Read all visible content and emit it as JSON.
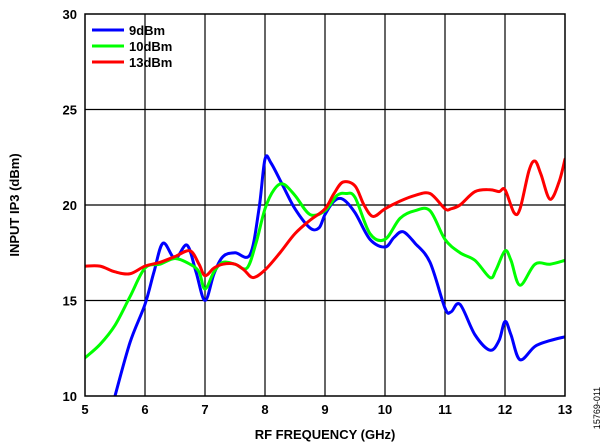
{
  "chart_data": {
    "type": "line",
    "title": "",
    "xlabel": "RF FREQUENCY (GHz)",
    "ylabel": "INPUT IP3 (dBm)",
    "xlim": [
      5,
      13
    ],
    "ylim": [
      10,
      30
    ],
    "xticks": [
      5,
      6,
      7,
      8,
      9,
      10,
      11,
      12,
      13
    ],
    "yticks": [
      10,
      15,
      20,
      25,
      30
    ],
    "grid": true,
    "legend_position": "top-left",
    "figure_id": "15769-011",
    "series": [
      {
        "name": "9dBm",
        "color": "#0000ff",
        "x": [
          5.5,
          5.75,
          6.0,
          6.15,
          6.3,
          6.5,
          6.7,
          6.85,
          7.0,
          7.15,
          7.3,
          7.5,
          7.75,
          7.9,
          8.0,
          8.1,
          8.3,
          8.5,
          8.75,
          8.9,
          9.0,
          9.15,
          9.3,
          9.5,
          9.75,
          10.0,
          10.15,
          10.3,
          10.5,
          10.75,
          11.0,
          11.1,
          11.25,
          11.5,
          11.75,
          11.9,
          12.0,
          12.1,
          12.25,
          12.5,
          12.75,
          13.0
        ],
        "y": [
          10.0,
          12.8,
          14.8,
          16.5,
          18.0,
          17.2,
          17.9,
          16.5,
          15.0,
          16.4,
          17.3,
          17.5,
          17.4,
          19.8,
          22.4,
          22.2,
          21.0,
          19.8,
          18.8,
          18.8,
          19.5,
          20.2,
          20.3,
          19.6,
          18.2,
          17.8,
          18.3,
          18.6,
          18.0,
          17.0,
          14.6,
          14.4,
          14.8,
          13.2,
          12.4,
          12.9,
          13.9,
          13.2,
          11.9,
          12.6,
          12.9,
          13.1
        ]
      },
      {
        "name": "10dBm",
        "color": "#00ff00",
        "x": [
          5.0,
          5.25,
          5.5,
          5.75,
          6.0,
          6.25,
          6.5,
          6.75,
          6.9,
          7.0,
          7.15,
          7.3,
          7.5,
          7.7,
          7.85,
          8.0,
          8.15,
          8.3,
          8.5,
          8.75,
          9.0,
          9.2,
          9.35,
          9.5,
          9.75,
          10.0,
          10.25,
          10.5,
          10.75,
          11.0,
          11.25,
          11.5,
          11.75,
          11.85,
          12.0,
          12.1,
          12.25,
          12.5,
          12.75,
          13.0
        ],
        "y": [
          12.0,
          12.7,
          13.7,
          15.2,
          16.7,
          16.9,
          17.2,
          16.9,
          16.5,
          15.6,
          16.5,
          17.0,
          16.9,
          16.7,
          18.0,
          19.8,
          20.8,
          21.1,
          20.5,
          19.5,
          19.7,
          20.5,
          20.6,
          20.4,
          18.5,
          18.2,
          19.3,
          19.7,
          19.7,
          18.2,
          17.5,
          17.1,
          16.2,
          16.6,
          17.6,
          17.1,
          15.8,
          16.9,
          16.9,
          17.1
        ]
      },
      {
        "name": "13dBm",
        "color": "#ff0000",
        "x": [
          5.0,
          5.25,
          5.5,
          5.75,
          6.0,
          6.25,
          6.5,
          6.75,
          6.9,
          7.0,
          7.15,
          7.3,
          7.5,
          7.65,
          7.8,
          8.0,
          8.25,
          8.5,
          8.75,
          9.0,
          9.15,
          9.3,
          9.5,
          9.65,
          9.8,
          10.0,
          10.25,
          10.5,
          10.75,
          11.0,
          11.1,
          11.25,
          11.5,
          11.75,
          11.9,
          12.0,
          12.15,
          12.25,
          12.4,
          12.5,
          12.6,
          12.75,
          12.9,
          13.0
        ],
        "y": [
          16.8,
          16.8,
          16.5,
          16.4,
          16.8,
          17.0,
          17.3,
          17.6,
          16.9,
          16.3,
          16.7,
          16.9,
          16.9,
          16.6,
          16.2,
          16.6,
          17.5,
          18.5,
          19.2,
          19.8,
          20.6,
          21.2,
          21.0,
          20.0,
          19.4,
          19.8,
          20.2,
          20.5,
          20.6,
          19.8,
          19.8,
          20.0,
          20.7,
          20.8,
          20.7,
          20.8,
          19.6,
          19.8,
          21.8,
          22.3,
          21.6,
          20.3,
          21.2,
          22.4
        ]
      }
    ]
  }
}
